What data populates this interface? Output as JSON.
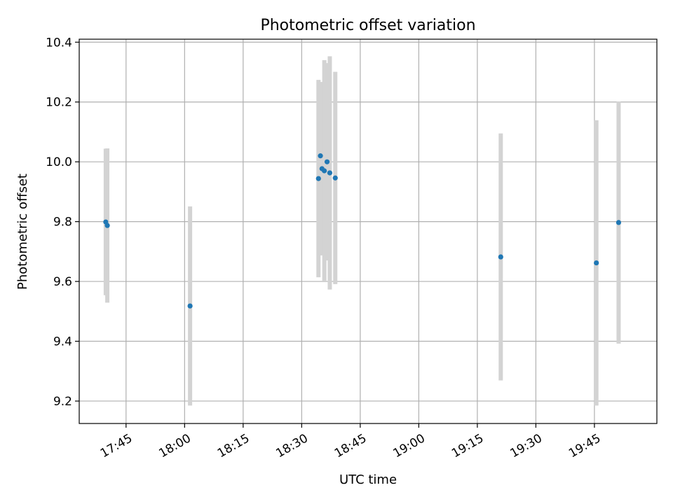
{
  "chart_data": {
    "type": "scatter",
    "title": "Photometric offset variation",
    "xlabel": "UTC time",
    "ylabel": "Photometric offset",
    "xlim": [
      "17:33",
      "20:01"
    ],
    "ylim": [
      9.125,
      10.41
    ],
    "x_ticks": [
      "17:45",
      "18:00",
      "18:15",
      "18:30",
      "18:45",
      "19:00",
      "19:15",
      "19:30",
      "19:45"
    ],
    "y_ticks": [
      9.2,
      9.4,
      9.6,
      9.8,
      10.0,
      10.2,
      10.4
    ],
    "y_tick_labels": [
      "9.2",
      "9.4",
      "9.6",
      "9.8",
      "10.0",
      "10.2",
      "10.4"
    ],
    "grid": true,
    "point_color": "#1f77b4",
    "errorbar_color": "#d3d3d3",
    "points": [
      {
        "x": "17:39.8",
        "y": 9.799,
        "yerr": 0.245
      },
      {
        "x": "17:40.2",
        "y": 9.787,
        "yerr": 0.258
      },
      {
        "x": "18:01.4",
        "y": 9.518,
        "yerr": 0.333
      },
      {
        "x": "18:34.3",
        "y": 9.944,
        "yerr": 0.33
      },
      {
        "x": "18:34.8",
        "y": 10.02,
        "yerr": 0.24
      },
      {
        "x": "18:35.2",
        "y": 9.977,
        "yerr": 0.29
      },
      {
        "x": "18:35.8",
        "y": 9.97,
        "yerr": 0.37
      },
      {
        "x": "18:36.5",
        "y": 10.0,
        "yerr": 0.33
      },
      {
        "x": "18:37.2",
        "y": 9.963,
        "yerr": 0.39
      },
      {
        "x": "18:38.6",
        "y": 9.946,
        "yerr": 0.355
      },
      {
        "x": "19:21.0",
        "y": 9.682,
        "yerr": 0.413
      },
      {
        "x": "19:45.5",
        "y": 9.662,
        "yerr": 0.477
      },
      {
        "x": "19:51.2",
        "y": 9.797,
        "yerr": 0.405
      }
    ]
  }
}
